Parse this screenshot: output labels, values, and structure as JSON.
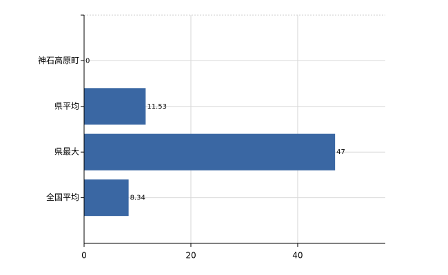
{
  "chart_data": {
    "type": "hbar",
    "categories": [
      "神石高原町",
      "県平均",
      "県最大",
      "全国平均"
    ],
    "values": [
      0,
      11.53,
      47,
      8.34
    ],
    "color": "#3a67a3",
    "xlim": [
      0,
      56.4
    ],
    "xticks": [
      0,
      20,
      40
    ],
    "grid": true
  }
}
